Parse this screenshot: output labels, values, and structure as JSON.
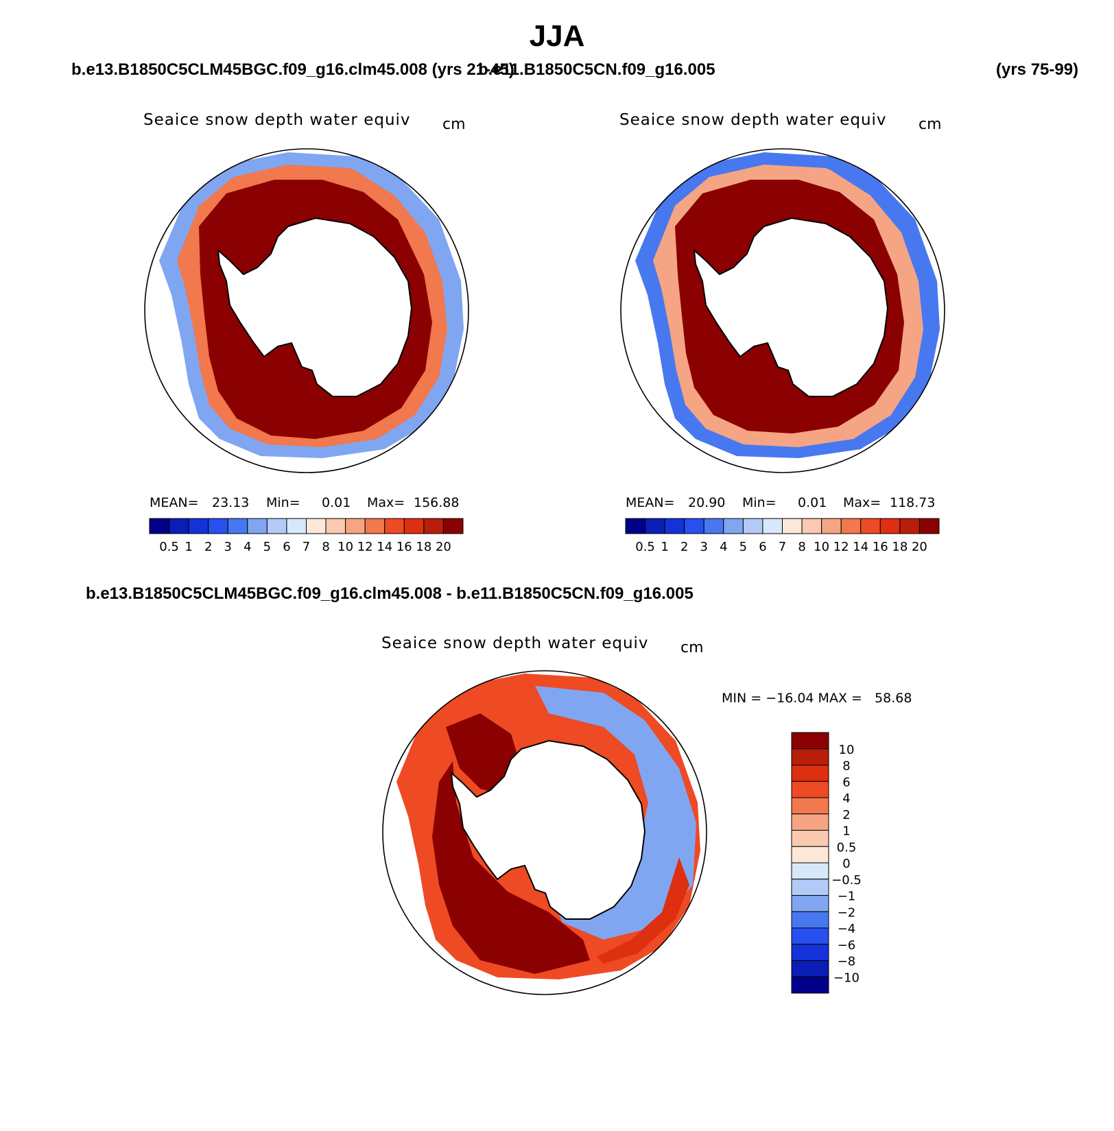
{
  "title": "JJA",
  "header": {
    "case1": "b.e13.B1850C5CLM45BGC.f09_g16.clm45.008 (yrs 21-45)",
    "case2": "b.e11.B1850C5CN.f09_g16.005",
    "case2_years": "(yrs 75-99)",
    "diff": "b.e13.B1850C5CLM45BGC.f09_g16.clm45.008 - b.e11.B1850C5CN.f09_g16.005"
  },
  "colors": {
    "abs_scale": [
      "#00008b",
      "#0a1db4",
      "#1432d8",
      "#2850ee",
      "#4878f0",
      "#80a6f2",
      "#b2cbf6",
      "#d8e8fb",
      "#fde8d8",
      "#fbc9b0",
      "#f5a583",
      "#f2784d",
      "#ee4a24",
      "#de3010",
      "#b81e0a",
      "#8b0000"
    ],
    "diff_scale": [
      "#00008b",
      "#0a1db4",
      "#1432d8",
      "#2850ee",
      "#4878f0",
      "#80a6f2",
      "#b2cbf6",
      "#d8e8fb",
      "#fde8d8",
      "#fbc9b0",
      "#f5a583",
      "#f2784d",
      "#ee4a24",
      "#de3010",
      "#b81e0a",
      "#8b0000"
    ],
    "land": "#ffffff",
    "coast": "#000000"
  },
  "chart_data": [
    {
      "type": "heatmap",
      "panel": "left",
      "title": "Seaice snow depth water equiv",
      "units": "cm",
      "projection": "south polar stereographic",
      "region_levels": {
        "inner_pack": 20,
        "outer_ring": 12,
        "edge": 4
      },
      "stats": {
        "mean_label": "MEAN=",
        "mean": "23.13",
        "min_label": "Min=",
        "min": "0.01",
        "max_label": "Max=",
        "max": "156.88"
      },
      "colorbar_levels": [
        "0.5",
        "1",
        "2",
        "3",
        "4",
        "5",
        "6",
        "7",
        "8",
        "10",
        "12",
        "14",
        "16",
        "18",
        "20"
      ]
    },
    {
      "type": "heatmap",
      "panel": "right",
      "title": "Seaice snow depth water equiv",
      "units": "cm",
      "projection": "south polar stereographic",
      "region_levels": {
        "inner_pack": 20,
        "outer_ring": 10,
        "edge": 3
      },
      "stats": {
        "mean_label": "MEAN=",
        "mean": "20.90",
        "min_label": "Min=",
        "min": "0.01",
        "max_label": "Max=",
        "max": "118.73"
      },
      "colorbar_levels": [
        "0.5",
        "1",
        "2",
        "3",
        "4",
        "5",
        "6",
        "7",
        "8",
        "10",
        "12",
        "14",
        "16",
        "18",
        "20"
      ]
    },
    {
      "type": "heatmap",
      "panel": "difference",
      "title": "Seaice snow depth water equiv",
      "units": "cm",
      "projection": "south polar stereographic",
      "region_levels": {
        "weddell": 10,
        "ross": 4,
        "indian_sector": -2,
        "pacific_edge": 6
      },
      "stats": {
        "text": "MIN = −16.04 MAX =   58.68",
        "min": -16.04,
        "max": 58.68
      },
      "colorbar_levels": [
        "10",
        "8",
        "6",
        "4",
        "2",
        "1",
        "0.5",
        "0",
        "−0.5",
        "−1",
        "−2",
        "−4",
        "−6",
        "−8",
        "−10"
      ]
    }
  ]
}
